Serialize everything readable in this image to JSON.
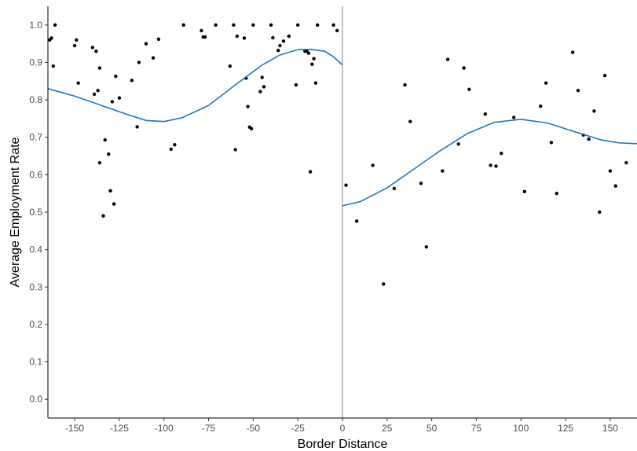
{
  "chart_data": {
    "type": "scatter",
    "title": "",
    "xlabel": "Border Distance",
    "ylabel": "Average Employment Rate",
    "xlim": [
      -165,
      165
    ],
    "ylim": [
      -0.05,
      1.05
    ],
    "xticks": [
      -150,
      -125,
      -100,
      -75,
      -50,
      -25,
      0,
      25,
      50,
      75,
      100,
      125,
      150
    ],
    "yticks": [
      0.0,
      0.1,
      0.2,
      0.3,
      0.4,
      0.5,
      0.6,
      0.7,
      0.8,
      0.9,
      1.0
    ],
    "x_tick_labels": [
      "-150",
      "-125",
      "-100",
      "-75",
      "-50",
      "-25",
      "0",
      "25",
      "50",
      "75",
      "100",
      "125",
      "150"
    ],
    "y_tick_labels": [
      "0.0",
      "0.1",
      "0.2",
      "0.3",
      "0.4",
      "0.5",
      "0.6",
      "0.7",
      "0.8",
      "0.9",
      "1.0"
    ],
    "grid": false,
    "cutoff_line": {
      "x": 0,
      "color": "#999999"
    },
    "point_color": "#000000",
    "fit_color": "#1f77b4",
    "points": [
      [
        -164,
        0.96
      ],
      [
        -163,
        0.965
      ],
      [
        -162,
        0.89
      ],
      [
        -161,
        1.0
      ],
      [
        -150,
        0.945
      ],
      [
        -149,
        0.96
      ],
      [
        -148,
        0.845
      ],
      [
        -140,
        0.94
      ],
      [
        -139,
        0.815
      ],
      [
        -138,
        0.93
      ],
      [
        -137,
        0.825
      ],
      [
        -136,
        0.885
      ],
      [
        -136,
        0.632
      ],
      [
        -134,
        0.49
      ],
      [
        -133,
        0.693
      ],
      [
        -131,
        0.655
      ],
      [
        -130,
        0.557
      ],
      [
        -129,
        0.795
      ],
      [
        -128,
        0.522
      ],
      [
        -127,
        0.863
      ],
      [
        -125,
        0.805
      ],
      [
        -118,
        0.852
      ],
      [
        -115,
        0.728
      ],
      [
        -114,
        0.9
      ],
      [
        -110,
        0.95
      ],
      [
        -106,
        0.912
      ],
      [
        -103,
        0.962
      ],
      [
        -96,
        0.668
      ],
      [
        -94,
        0.68
      ],
      [
        -89,
        1.0
      ],
      [
        -79,
        0.985
      ],
      [
        -78,
        0.968
      ],
      [
        -77,
        0.968
      ],
      [
        -71,
        1.0
      ],
      [
        -63,
        0.89
      ],
      [
        -61,
        1.0
      ],
      [
        -60,
        0.667
      ],
      [
        -59,
        0.97
      ],
      [
        -55,
        0.965
      ],
      [
        -54,
        0.858
      ],
      [
        -53,
        0.782
      ],
      [
        -52,
        0.727
      ],
      [
        -51,
        0.723
      ],
      [
        -50,
        1.0
      ],
      [
        -46,
        0.822
      ],
      [
        -45,
        0.86
      ],
      [
        -44,
        0.835
      ],
      [
        -40,
        1.0
      ],
      [
        -39,
        0.966
      ],
      [
        -36,
        0.932
      ],
      [
        -35,
        0.945
      ],
      [
        -33,
        0.957
      ],
      [
        -30,
        0.97
      ],
      [
        -26,
        0.84
      ],
      [
        -25,
        1.0
      ],
      [
        -21,
        0.93
      ],
      [
        -20,
        0.93
      ],
      [
        -19,
        0.925
      ],
      [
        -18,
        0.608
      ],
      [
        -17,
        0.895
      ],
      [
        -16,
        0.91
      ],
      [
        -15,
        0.845
      ],
      [
        -14,
        1.0
      ],
      [
        -5,
        1.0
      ],
      [
        -3,
        0.985
      ],
      [
        2,
        0.572
      ],
      [
        8,
        0.476
      ],
      [
        17,
        0.625
      ],
      [
        23,
        0.308
      ],
      [
        29,
        0.563
      ],
      [
        35,
        0.84
      ],
      [
        38,
        0.742
      ],
      [
        44,
        0.577
      ],
      [
        47,
        0.407
      ],
      [
        56,
        0.61
      ],
      [
        59,
        0.908
      ],
      [
        65,
        0.682
      ],
      [
        68,
        0.885
      ],
      [
        71,
        0.828
      ],
      [
        80,
        0.762
      ],
      [
        83,
        0.625
      ],
      [
        86,
        0.623
      ],
      [
        89,
        0.657
      ],
      [
        96,
        0.753
      ],
      [
        102,
        0.555
      ],
      [
        111,
        0.783
      ],
      [
        114,
        0.845
      ],
      [
        117,
        0.686
      ],
      [
        120,
        0.55
      ],
      [
        129,
        0.927
      ],
      [
        132,
        0.825
      ],
      [
        135,
        0.706
      ],
      [
        138,
        0.695
      ],
      [
        141,
        0.77
      ],
      [
        144,
        0.5
      ],
      [
        147,
        0.865
      ],
      [
        150,
        0.61
      ],
      [
        153,
        0.57
      ],
      [
        159,
        0.632
      ]
    ],
    "fit_left": [
      [
        -165,
        0.83
      ],
      [
        -150,
        0.81
      ],
      [
        -135,
        0.785
      ],
      [
        -120,
        0.76
      ],
      [
        -110,
        0.745
      ],
      [
        -100,
        0.742
      ],
      [
        -90,
        0.752
      ],
      [
        -75,
        0.785
      ],
      [
        -60,
        0.84
      ],
      [
        -45,
        0.893
      ],
      [
        -35,
        0.92
      ],
      [
        -25,
        0.934
      ],
      [
        -18,
        0.935
      ],
      [
        -10,
        0.93
      ],
      [
        -5,
        0.915
      ],
      [
        0,
        0.893
      ]
    ],
    "fit_right": [
      [
        0,
        0.517
      ],
      [
        10,
        0.528
      ],
      [
        25,
        0.565
      ],
      [
        40,
        0.615
      ],
      [
        55,
        0.665
      ],
      [
        70,
        0.71
      ],
      [
        85,
        0.74
      ],
      [
        100,
        0.748
      ],
      [
        115,
        0.738
      ],
      [
        130,
        0.715
      ],
      [
        145,
        0.693
      ],
      [
        155,
        0.685
      ],
      [
        165,
        0.683
      ]
    ]
  }
}
